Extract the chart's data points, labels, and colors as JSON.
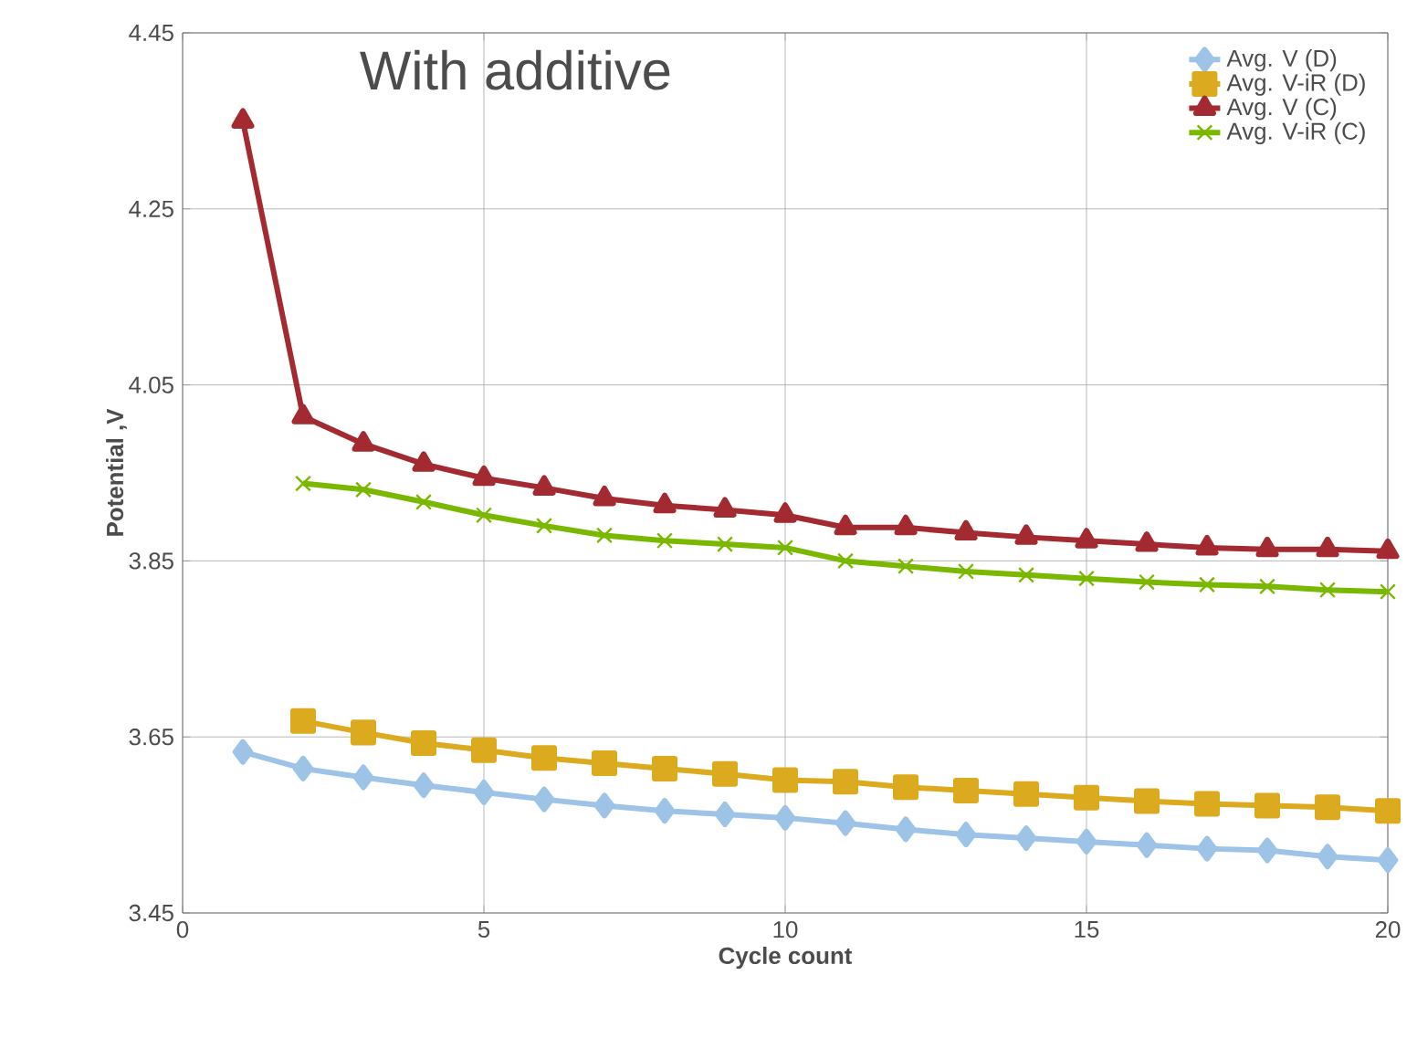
{
  "chart_data": {
    "type": "line",
    "xlabel": "Cycle count",
    "ylabel": "Potential ,V",
    "annotations": [
      "With additive"
    ],
    "xlim": [
      0,
      20
    ],
    "xticks": [
      0,
      5,
      10,
      15,
      20
    ],
    "ylim": [
      3.45,
      4.45
    ],
    "yticks": [
      3.45,
      3.65,
      3.85,
      4.05,
      4.25,
      4.45
    ],
    "grid": true,
    "legend": "top right",
    "series": [
      {
        "name": "Avg. V (D)",
        "color": "#9dc3e6",
        "marker": "diamond",
        "x": [
          1,
          2,
          3,
          4,
          5,
          6,
          7,
          8,
          9,
          10,
          11,
          12,
          13,
          14,
          15,
          16,
          17,
          18,
          19,
          20
        ],
        "values": [
          3.633,
          3.614,
          3.604,
          3.595,
          3.587,
          3.579,
          3.572,
          3.566,
          3.562,
          3.558,
          3.552,
          3.545,
          3.539,
          3.535,
          3.531,
          3.527,
          3.523,
          3.521,
          3.514,
          3.51
        ]
      },
      {
        "name": "Avg. V-iR (D)",
        "color": "#dcaa1e",
        "marker": "square",
        "x": [
          2,
          3,
          4,
          5,
          6,
          7,
          8,
          9,
          10,
          11,
          12,
          13,
          14,
          15,
          16,
          17,
          18,
          19,
          20
        ],
        "values": [
          3.668,
          3.655,
          3.643,
          3.635,
          3.626,
          3.62,
          3.614,
          3.608,
          3.601,
          3.599,
          3.593,
          3.589,
          3.585,
          3.581,
          3.577,
          3.574,
          3.572,
          3.57,
          3.566
        ]
      },
      {
        "name": "Avg. V (C)",
        "color": "#a32a31",
        "marker": "triangle",
        "x": [
          1,
          2,
          3,
          4,
          5,
          6,
          7,
          8,
          9,
          10,
          11,
          12,
          13,
          14,
          15,
          16,
          17,
          18,
          19,
          20
        ],
        "values": [
          4.35,
          4.014,
          3.983,
          3.96,
          3.944,
          3.933,
          3.921,
          3.913,
          3.908,
          3.902,
          3.888,
          3.888,
          3.882,
          3.877,
          3.873,
          3.869,
          3.865,
          3.863,
          3.863,
          3.861
        ]
      },
      {
        "name": "Avg. V-iR (C)",
        "color": "#7ab800",
        "marker": "cross",
        "x": [
          2,
          3,
          4,
          5,
          6,
          7,
          8,
          9,
          10,
          11,
          12,
          13,
          14,
          15,
          16,
          17,
          18,
          19,
          20
        ],
        "values": [
          3.938,
          3.931,
          3.917,
          3.902,
          3.89,
          3.879,
          3.873,
          3.869,
          3.865,
          3.85,
          3.844,
          3.838,
          3.834,
          3.83,
          3.826,
          3.823,
          3.821,
          3.817,
          3.815
        ]
      }
    ]
  }
}
